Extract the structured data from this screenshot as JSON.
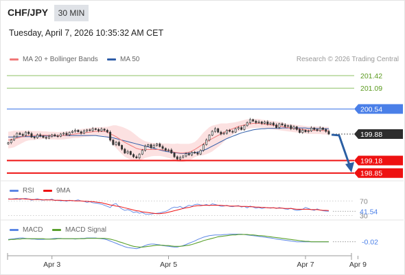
{
  "header": {
    "symbol": "CHF/JPY",
    "timeframe": "30 MIN",
    "datetime": "Tuesday, April 7, 2026 10:35:32 AM CET"
  },
  "legend": {
    "ma20_bb": "MA 20 + Bollinger Bands",
    "ma50": "MA 50",
    "copyright": "Research © 2026 Trading Central"
  },
  "rsi_legend": {
    "rsi": "RSI",
    "ma9": "9MA"
  },
  "macd_legend": {
    "macd": "MACD",
    "signal": "MACD Signal"
  },
  "colors": {
    "resistance_green": "#8cc063",
    "pivot_blue": "#4a7fe8",
    "support_red": "#ee1111",
    "last_price": "#2d2d2d",
    "ma20": "#f07878",
    "bb_fill": "#fbdcdc",
    "ma50": "#2f5da8",
    "arrow": "#2b5fa3"
  },
  "chart_data": {
    "type": "candlestick",
    "price_panel": {
      "ylim": [
        198.7,
        201.62
      ],
      "levels": [
        {
          "value": 201.42,
          "label": "201.42",
          "kind": "resistance"
        },
        {
          "value": 201.09,
          "label": "201.09",
          "kind": "resistance"
        },
        {
          "value": 200.54,
          "label": "200.54",
          "kind": "pivot"
        },
        {
          "value": 199.18,
          "label": "199.18",
          "kind": "support"
        },
        {
          "value": 198.85,
          "label": "198.85",
          "kind": "support"
        }
      ],
      "last_price": {
        "value": 199.88,
        "label": "199.88"
      },
      "forecast": {
        "from": 199.88,
        "to": 198.85
      },
      "close": [
        199.65,
        199.72,
        199.81,
        199.9,
        199.87,
        199.84,
        199.93,
        199.89,
        199.8,
        199.78,
        199.86,
        199.83,
        199.79,
        199.77,
        199.82,
        199.86,
        199.83,
        199.82,
        199.88,
        199.9,
        199.86,
        199.92,
        199.95,
        199.98,
        199.94,
        199.9,
        199.96,
        199.99,
        199.97,
        200.02,
        200.0,
        199.96,
        200.01,
        199.98,
        199.93,
        199.72,
        199.6,
        199.66,
        199.58,
        199.48,
        199.38,
        199.42,
        199.34,
        199.28,
        199.25,
        199.35,
        199.45,
        199.56,
        199.6,
        199.52,
        199.58,
        199.62,
        199.55,
        199.5,
        199.45,
        199.46,
        199.38,
        199.28,
        199.22,
        199.26,
        199.3,
        199.36,
        199.33,
        199.4,
        199.38,
        199.35,
        199.45,
        199.6,
        199.72,
        199.85,
        199.95,
        200.02,
        199.93,
        199.88,
        199.9,
        199.98,
        199.95,
        199.93,
        200.02,
        200.05,
        200.0,
        200.1,
        200.18,
        200.26,
        200.22,
        200.18,
        200.2,
        200.16,
        200.2,
        200.14,
        200.17,
        200.12,
        200.05,
        200.15,
        200.12,
        200.08,
        200.1,
        200.02,
        200.07,
        200.0,
        199.92,
        199.98,
        199.94,
        199.96,
        200.04,
        200.0,
        199.97,
        200.04,
        200.0,
        199.95,
        199.88
      ],
      "ma20": [
        199.72,
        199.73,
        199.75,
        199.77,
        199.79,
        199.81,
        199.83,
        199.84,
        199.84,
        199.84,
        199.85,
        199.85,
        199.85,
        199.85,
        199.84,
        199.84,
        199.84,
        199.83,
        199.84,
        199.84,
        199.85,
        199.86,
        199.87,
        199.88,
        199.89,
        199.9,
        199.91,
        199.92,
        199.93,
        199.94,
        199.95,
        199.95,
        199.95,
        199.95,
        199.93,
        199.89,
        199.85,
        199.81,
        199.76,
        199.71,
        199.66,
        199.62,
        199.58,
        199.54,
        199.5,
        199.48,
        199.47,
        199.47,
        199.47,
        199.47,
        199.47,
        199.47,
        199.47,
        199.46,
        199.45,
        199.44,
        199.42,
        199.4,
        199.39,
        199.38,
        199.38,
        199.39,
        199.4,
        199.43,
        199.47,
        199.52,
        199.57,
        199.62,
        199.67,
        199.72,
        199.76,
        199.8,
        199.84,
        199.88,
        199.92,
        199.96,
        199.99,
        200.02,
        200.05,
        200.08,
        200.1,
        200.12,
        200.14,
        200.15,
        200.16,
        200.16,
        200.16,
        200.15,
        200.14,
        200.13,
        200.12,
        200.11,
        200.1,
        200.09,
        200.08,
        200.06,
        200.05,
        200.04,
        200.03,
        200.02,
        200.01,
        200.0,
        199.99,
        199.98,
        199.98,
        199.98,
        199.98,
        199.98,
        199.97,
        199.97,
        199.96
      ],
      "ma50": [
        199.8,
        199.8,
        199.8,
        199.8,
        199.81,
        199.81,
        199.81,
        199.81,
        199.81,
        199.82,
        199.82,
        199.82,
        199.83,
        199.83,
        199.83,
        199.83,
        199.83,
        199.83,
        199.84,
        199.84,
        199.84,
        199.84,
        199.84,
        199.84,
        199.84,
        199.84,
        199.84,
        199.84,
        199.84,
        199.84,
        199.84,
        199.83,
        199.82,
        199.81,
        199.8,
        199.79,
        199.78,
        199.76,
        199.74,
        199.72,
        199.7,
        199.68,
        199.66,
        199.64,
        199.62,
        199.6,
        199.58,
        199.56,
        199.54,
        199.52,
        199.5,
        199.48,
        199.46,
        199.44,
        199.42,
        199.41,
        199.4,
        199.39,
        199.38,
        199.37,
        199.37,
        199.37,
        199.37,
        199.38,
        199.39,
        199.4,
        199.42,
        199.45,
        199.48,
        199.52,
        199.56,
        199.6,
        199.64,
        199.68,
        199.72,
        199.76,
        199.79,
        199.82,
        199.85,
        199.88,
        199.91,
        199.93,
        199.95,
        199.97,
        199.99,
        200.0,
        200.01,
        200.02,
        200.02,
        200.03,
        200.03,
        200.03,
        200.03,
        200.03,
        200.04,
        200.04,
        200.04,
        200.04,
        200.04,
        200.04,
        200.04,
        200.04,
        200.04,
        200.03,
        200.03,
        200.03,
        200.03,
        200.02,
        200.02,
        200.02,
        200.02
      ],
      "bb_width": [
        0.22,
        0.22,
        0.22,
        0.2,
        0.18,
        0.16,
        0.14,
        0.13,
        0.12,
        0.12,
        0.11,
        0.11,
        0.1,
        0.1,
        0.1,
        0.1,
        0.1,
        0.1,
        0.1,
        0.1,
        0.1,
        0.1,
        0.1,
        0.1,
        0.11,
        0.11,
        0.11,
        0.11,
        0.11,
        0.11,
        0.11,
        0.11,
        0.11,
        0.12,
        0.14,
        0.2,
        0.26,
        0.3,
        0.33,
        0.36,
        0.38,
        0.38,
        0.38,
        0.36,
        0.34,
        0.3,
        0.26,
        0.22,
        0.2,
        0.18,
        0.17,
        0.17,
        0.17,
        0.17,
        0.18,
        0.19,
        0.2,
        0.22,
        0.24,
        0.24,
        0.24,
        0.23,
        0.22,
        0.21,
        0.2,
        0.22,
        0.26,
        0.3,
        0.32,
        0.34,
        0.34,
        0.32,
        0.3,
        0.28,
        0.24,
        0.2,
        0.18,
        0.16,
        0.14,
        0.13,
        0.13,
        0.13,
        0.13,
        0.12,
        0.12,
        0.12,
        0.12,
        0.11,
        0.11,
        0.11,
        0.11,
        0.11,
        0.11,
        0.11,
        0.11,
        0.1,
        0.1,
        0.1,
        0.1,
        0.1,
        0.1,
        0.1,
        0.1,
        0.1,
        0.1,
        0.1,
        0.1,
        0.1,
        0.1,
        0.1,
        0.11
      ]
    },
    "rsi_panel": {
      "ylim": [
        25,
        80
      ],
      "levels": [
        {
          "value": 70,
          "label": "70"
        },
        {
          "value": 30,
          "label": "30"
        }
      ],
      "last": {
        "value": 41.54,
        "label": "41.54"
      },
      "rsi": [
        76,
        75,
        76,
        77,
        74,
        76,
        77,
        75,
        72,
        74,
        76,
        73,
        72,
        74,
        73,
        75,
        71,
        72,
        70,
        71,
        69,
        72,
        70,
        71,
        73,
        70,
        69,
        66,
        68,
        65,
        64,
        63,
        61,
        58,
        55,
        52,
        60,
        63,
        54,
        48,
        44,
        46,
        43,
        38,
        40,
        36,
        38,
        34,
        33,
        34,
        35,
        36,
        37,
        39,
        41,
        45,
        50,
        53,
        52,
        55,
        50,
        54,
        58,
        56,
        60,
        61,
        59,
        58,
        60,
        57,
        62,
        60,
        58,
        55,
        56,
        58,
        55,
        54,
        56,
        57,
        53,
        55,
        51,
        56,
        53,
        50,
        52,
        49,
        51,
        52,
        50,
        52,
        49,
        52,
        50,
        48,
        47,
        50,
        46,
        44,
        45,
        47,
        52,
        49,
        46,
        44,
        48,
        45,
        43,
        42,
        41.54
      ],
      "ma9": [
        75,
        75,
        75,
        75,
        76,
        76,
        75,
        75,
        74,
        74,
        74,
        74,
        73,
        73,
        73,
        73,
        72,
        72,
        72,
        71,
        71,
        71,
        71,
        70,
        70,
        70,
        69,
        69,
        68,
        68,
        67,
        66,
        65,
        63,
        61,
        59,
        58,
        56,
        55,
        53,
        51,
        49,
        47,
        45,
        43,
        42,
        40,
        39,
        38,
        37,
        36,
        35,
        35,
        36,
        37,
        39,
        41,
        43,
        45,
        47,
        49,
        51,
        52,
        54,
        56,
        57,
        57,
        58,
        58,
        58,
        58,
        58,
        58,
        58,
        57,
        57,
        56,
        56,
        56,
        56,
        55,
        55,
        55,
        54,
        54,
        53,
        53,
        52,
        52,
        51,
        51,
        51,
        50,
        50,
        50,
        49,
        49,
        49,
        48,
        47,
        47,
        47,
        47,
        47,
        46,
        46,
        46,
        45,
        44,
        44,
        43.5
      ]
    },
    "macd_panel": {
      "ylim": [
        -0.35,
        0.19
      ],
      "last": {
        "value": -0.02,
        "label": "-0.02"
      },
      "macd": [
        0.04,
        0.05,
        0.06,
        0.07,
        0.08,
        0.08,
        0.07,
        0.06,
        0.05,
        0.05,
        0.04,
        0.04,
        0.04,
        0.05,
        0.05,
        0.06,
        0.07,
        0.07,
        0.07,
        0.06,
        0.06,
        0.06,
        0.06,
        0.05,
        0.06,
        0.07,
        0.07,
        0.08,
        0.08,
        0.08,
        0.08,
        0.07,
        0.06,
        0.05,
        0.03,
        0.0,
        -0.03,
        -0.06,
        -0.09,
        -0.12,
        -0.15,
        -0.17,
        -0.18,
        -0.19,
        -0.2,
        -0.18,
        -0.15,
        -0.12,
        -0.09,
        -0.08,
        -0.08,
        -0.09,
        -0.1,
        -0.12,
        -0.13,
        -0.14,
        -0.15,
        -0.16,
        -0.16,
        -0.14,
        -0.12,
        -0.09,
        -0.06,
        -0.03,
        0.0,
        0.04,
        0.07,
        0.1,
        0.12,
        0.14,
        0.15,
        0.16,
        0.16,
        0.16,
        0.17,
        0.17,
        0.18,
        0.18,
        0.18,
        0.18,
        0.18,
        0.17,
        0.16,
        0.15,
        0.14,
        0.13,
        0.12,
        0.11,
        0.1,
        0.09,
        0.08,
        0.07,
        0.05,
        0.04,
        0.03,
        0.02,
        0.01,
        0.0,
        -0.01,
        -0.02,
        -0.02,
        -0.02,
        -0.02,
        -0.02,
        -0.02,
        -0.02,
        -0.02,
        -0.02,
        -0.02,
        -0.02,
        -0.02
      ],
      "signal": [
        0.03,
        0.04,
        0.04,
        0.05,
        0.05,
        0.06,
        0.06,
        0.06,
        0.06,
        0.06,
        0.06,
        0.06,
        0.06,
        0.05,
        0.05,
        0.05,
        0.05,
        0.06,
        0.06,
        0.06,
        0.06,
        0.06,
        0.06,
        0.06,
        0.06,
        0.06,
        0.06,
        0.07,
        0.07,
        0.07,
        0.07,
        0.07,
        0.07,
        0.07,
        0.06,
        0.05,
        0.03,
        0.01,
        -0.02,
        -0.04,
        -0.07,
        -0.09,
        -0.12,
        -0.14,
        -0.15,
        -0.16,
        -0.16,
        -0.15,
        -0.14,
        -0.13,
        -0.12,
        -0.11,
        -0.11,
        -0.11,
        -0.12,
        -0.12,
        -0.13,
        -0.14,
        -0.14,
        -0.14,
        -0.13,
        -0.12,
        -0.11,
        -0.09,
        -0.07,
        -0.04,
        -0.02,
        0.01,
        0.03,
        0.05,
        0.07,
        0.09,
        0.11,
        0.12,
        0.13,
        0.14,
        0.15,
        0.16,
        0.16,
        0.17,
        0.17,
        0.17,
        0.17,
        0.16,
        0.16,
        0.15,
        0.14,
        0.14,
        0.13,
        0.12,
        0.11,
        0.1,
        0.09,
        0.08,
        0.07,
        0.06,
        0.05,
        0.04,
        0.03,
        0.02,
        0.01,
        0.0,
        -0.01,
        -0.01,
        -0.02,
        -0.02,
        -0.02,
        -0.02,
        -0.02,
        -0.02,
        -0.02
      ]
    },
    "x_ticks": [
      {
        "label": "Apr 3",
        "index": 15
      },
      {
        "label": "Apr 5",
        "index": 55
      },
      {
        "label": "Apr 7",
        "index": 102
      },
      {
        "label": "Apr 9",
        "index": 120
      }
    ]
  }
}
